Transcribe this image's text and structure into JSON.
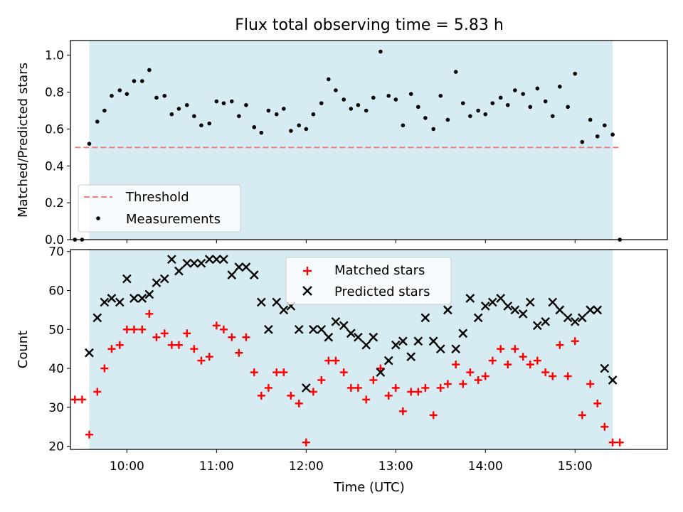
{
  "title": "Flux total observing time = 5.83 h",
  "colors": {
    "band": "#add8e6",
    "threshold": "#f08080",
    "matched": "#ff0000",
    "predicted": "#000000",
    "measurement": "#000000"
  },
  "chart_data": [
    {
      "type": "scatter",
      "ylabel": "Matched/Predicted stars",
      "xlim": [
        9.37,
        16.03
      ],
      "ylim": [
        0,
        1.08
      ],
      "y_ticks": [
        0.0,
        0.2,
        0.4,
        0.6,
        0.8,
        1.0
      ],
      "y_tick_labels": [
        "0.0",
        "0.2",
        "0.4",
        "0.6",
        "0.8",
        "1.0"
      ],
      "grid": false,
      "legend_position": "lower-left",
      "shaded_interval": [
        9.58,
        15.42
      ],
      "threshold": {
        "name": "Threshold",
        "value": 0.5,
        "x_range": [
          9.42,
          15.5
        ]
      },
      "series": [
        {
          "name": "Measurements",
          "x": [
            9.42,
            9.5,
            9.58,
            9.67,
            9.75,
            9.83,
            9.92,
            10.0,
            10.08,
            10.17,
            10.25,
            10.33,
            10.42,
            10.5,
            10.58,
            10.67,
            10.75,
            10.83,
            10.92,
            11.0,
            11.08,
            11.17,
            11.25,
            11.33,
            11.42,
            11.5,
            11.58,
            11.67,
            11.75,
            11.83,
            11.92,
            12.0,
            12.08,
            12.17,
            12.25,
            12.33,
            12.42,
            12.5,
            12.58,
            12.67,
            12.75,
            12.83,
            12.92,
            13.0,
            13.08,
            13.17,
            13.25,
            13.33,
            13.42,
            13.5,
            13.58,
            13.67,
            13.75,
            13.83,
            13.92,
            14.0,
            14.08,
            14.17,
            14.25,
            14.33,
            14.42,
            14.5,
            14.58,
            14.67,
            14.75,
            14.83,
            14.92,
            15.0,
            15.08,
            15.17,
            15.25,
            15.33,
            15.42,
            15.5
          ],
          "y": [
            0.0,
            0.0,
            0.52,
            0.64,
            0.7,
            0.78,
            0.81,
            0.79,
            0.86,
            0.86,
            0.92,
            0.77,
            0.78,
            0.68,
            0.71,
            0.73,
            0.67,
            0.62,
            0.63,
            0.75,
            0.74,
            0.75,
            0.67,
            0.73,
            0.61,
            0.58,
            0.7,
            0.68,
            0.71,
            0.59,
            0.62,
            0.6,
            0.68,
            0.74,
            0.87,
            0.81,
            0.76,
            0.71,
            0.73,
            0.7,
            0.77,
            1.02,
            0.78,
            0.76,
            0.62,
            0.79,
            0.72,
            0.66,
            0.6,
            0.78,
            0.65,
            0.91,
            0.74,
            0.67,
            0.7,
            0.68,
            0.74,
            0.77,
            0.73,
            0.81,
            0.79,
            0.72,
            0.82,
            0.75,
            0.67,
            0.83,
            0.72,
            0.9,
            0.53,
            0.65,
            0.56,
            0.62,
            0.57,
            0.0
          ]
        }
      ]
    },
    {
      "type": "scatter",
      "xlabel": "Time (UTC)",
      "ylabel": "Count",
      "xlim": [
        9.37,
        16.03
      ],
      "ylim": [
        19.2,
        70.5
      ],
      "x_ticks": [
        10,
        11,
        12,
        13,
        14,
        15
      ],
      "x_tick_labels": [
        "10:00",
        "11:00",
        "12:00",
        "13:00",
        "14:00",
        "15:00"
      ],
      "y_ticks": [
        20,
        30,
        40,
        50,
        60,
        70
      ],
      "y_tick_labels": [
        "20",
        "30",
        "40",
        "50",
        "60",
        "70"
      ],
      "grid": false,
      "legend_position": "top-center",
      "shaded_interval": [
        9.58,
        15.42
      ],
      "series": [
        {
          "name": "Matched stars",
          "marker": "plus",
          "x": [
            9.42,
            9.5,
            9.58,
            9.67,
            9.75,
            9.83,
            9.92,
            10.0,
            10.08,
            10.17,
            10.25,
            10.33,
            10.42,
            10.5,
            10.58,
            10.67,
            10.75,
            10.83,
            10.92,
            11.0,
            11.08,
            11.17,
            11.25,
            11.33,
            11.42,
            11.5,
            11.58,
            11.67,
            11.75,
            11.83,
            11.92,
            12.0,
            12.08,
            12.17,
            12.25,
            12.33,
            12.42,
            12.5,
            12.58,
            12.67,
            12.75,
            12.83,
            12.92,
            13.0,
            13.08,
            13.17,
            13.25,
            13.33,
            13.42,
            13.5,
            13.58,
            13.67,
            13.75,
            13.83,
            13.92,
            14.0,
            14.08,
            14.17,
            14.25,
            14.33,
            14.42,
            14.5,
            14.58,
            14.67,
            14.75,
            14.83,
            14.92,
            15.0,
            15.08,
            15.17,
            15.25,
            15.33,
            15.42,
            15.5
          ],
          "y": [
            32,
            32,
            23,
            34,
            40,
            45,
            46,
            50,
            50,
            50,
            54,
            48,
            49,
            46,
            46,
            49,
            45,
            42,
            43,
            51,
            50,
            48,
            44,
            48,
            39,
            33,
            35,
            39,
            39,
            33,
            31,
            21,
            34,
            37,
            42,
            42,
            39,
            35,
            35,
            32,
            37,
            40,
            33,
            35,
            29,
            34,
            34,
            35,
            28,
            35,
            36,
            41,
            36,
            39,
            37,
            38,
            42,
            45,
            41,
            45,
            43,
            41,
            42,
            39,
            38,
            46,
            38,
            47,
            28,
            36,
            31,
            25,
            21,
            21
          ]
        },
        {
          "name": "Predicted stars",
          "marker": "x",
          "x": [
            9.58,
            9.67,
            9.75,
            9.83,
            9.92,
            10.0,
            10.08,
            10.17,
            10.25,
            10.33,
            10.42,
            10.5,
            10.58,
            10.67,
            10.75,
            10.83,
            10.92,
            11.0,
            11.08,
            11.17,
            11.25,
            11.33,
            11.42,
            11.5,
            11.58,
            11.67,
            11.75,
            11.83,
            11.92,
            12.0,
            12.08,
            12.17,
            12.25,
            12.33,
            12.42,
            12.5,
            12.58,
            12.67,
            12.75,
            12.83,
            12.92,
            13.0,
            13.08,
            13.17,
            13.25,
            13.33,
            13.42,
            13.5,
            13.58,
            13.67,
            13.75,
            13.83,
            13.92,
            14.0,
            14.08,
            14.17,
            14.25,
            14.33,
            14.42,
            14.5,
            14.58,
            14.67,
            14.75,
            14.83,
            14.92,
            15.0,
            15.08,
            15.17,
            15.25,
            15.33,
            15.42
          ],
          "y": [
            44,
            53,
            57,
            58,
            57,
            63,
            58,
            58,
            59,
            62,
            63,
            68,
            65,
            67,
            67,
            67,
            68,
            68,
            68,
            64,
            66,
            66,
            64,
            57,
            50,
            57,
            55,
            56,
            50,
            35,
            50,
            50,
            48,
            52,
            51,
            49,
            48,
            46,
            48,
            39,
            42,
            46,
            47,
            43,
            47,
            53,
            47,
            45,
            55,
            45,
            49,
            58,
            53,
            56,
            57,
            58,
            56,
            55,
            54,
            57,
            51,
            52,
            57,
            55,
            53,
            52,
            53,
            55,
            55,
            40,
            37
          ]
        }
      ]
    }
  ]
}
